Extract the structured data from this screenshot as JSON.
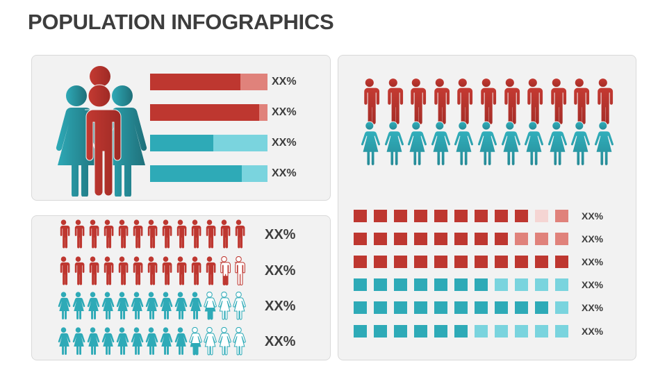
{
  "title": "POPULATION INFOGRAPHICS",
  "colors": {
    "red_dark": "#be3730",
    "red_light": "#e0827b",
    "red_pale": "#f5d5d3",
    "teal_dark": "#2eaab7",
    "teal_light": "#7ad4de",
    "text": "#3d3d3d",
    "panel_bg": "#f2f2f2"
  },
  "top_left_panel": {
    "icon": "family-group-icon",
    "bars": [
      {
        "color": "red",
        "filled_pct": 77,
        "label": "XX%"
      },
      {
        "color": "red",
        "filled_pct": 93,
        "label": "XX%"
      },
      {
        "color": "teal",
        "filled_pct": 54,
        "label": "XX%"
      },
      {
        "color": "teal",
        "filled_pct": 78,
        "label": "XX%"
      }
    ]
  },
  "bottom_left_panel": {
    "icons_per_row": 13,
    "rows": [
      {
        "icon": "man-icon",
        "color": "red",
        "filled": 13,
        "partial": 0,
        "outline": 0,
        "label": "XX%"
      },
      {
        "icon": "man-icon",
        "color": "red",
        "filled": 11,
        "partial": 1,
        "outline": 1,
        "label": "XX%"
      },
      {
        "icon": "woman-icon",
        "color": "teal",
        "filled": 10,
        "partial": 1,
        "outline": 2,
        "label": "XX%"
      },
      {
        "icon": "woman-icon",
        "color": "teal",
        "filled": 9,
        "partial": 1,
        "outline": 3,
        "label": "XX%"
      }
    ]
  },
  "right_panel": {
    "men_count": 11,
    "women_count": 11,
    "square_rows": [
      {
        "color": "red",
        "cells": [
          "d",
          "d",
          "d",
          "d",
          "d",
          "d",
          "d",
          "d",
          "d",
          "p",
          "l"
        ],
        "label": "XX%"
      },
      {
        "color": "red",
        "cells": [
          "d",
          "d",
          "d",
          "d",
          "d",
          "d",
          "d",
          "d",
          "l",
          "l",
          "l"
        ],
        "label": "XX%"
      },
      {
        "color": "red",
        "cells": [
          "d",
          "d",
          "d",
          "d",
          "d",
          "d",
          "d",
          "d",
          "d",
          "d",
          "d"
        ],
        "label": "XX%"
      },
      {
        "color": "teal",
        "cells": [
          "d",
          "d",
          "d",
          "d",
          "d",
          "d",
          "d",
          "l",
          "l",
          "l",
          "l"
        ],
        "label": "XX%"
      },
      {
        "color": "teal",
        "cells": [
          "d",
          "d",
          "d",
          "d",
          "d",
          "d",
          "d",
          "d",
          "d",
          "d",
          "l"
        ],
        "label": "XX%"
      },
      {
        "color": "teal",
        "cells": [
          "d",
          "d",
          "d",
          "d",
          "d",
          "d",
          "l",
          "l",
          "l",
          "l",
          "l"
        ],
        "label": "XX%"
      }
    ]
  }
}
